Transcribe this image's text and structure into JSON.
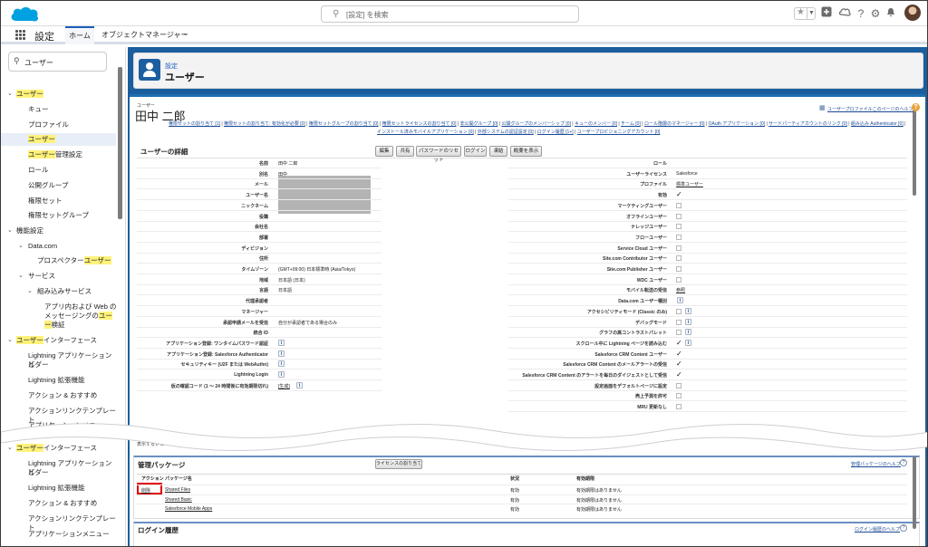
{
  "search": {
    "placeholder": "[設定] を検索"
  },
  "app": {
    "name": "設定"
  },
  "tabs": {
    "home": "ホーム",
    "object_manager": "オブジェクトマネージャー"
  },
  "sidebar": {
    "search_value": "ユーザー",
    "items_upper": [
      "ユーザー",
      "キュー",
      "プロファイル",
      "ユーザー",
      "ユーザー管理設定",
      "ロール",
      "公開グループ",
      "権限セット",
      "権限セットグループ",
      "機能設定",
      "Data.com",
      "プロスペクターユーザー",
      "サービス",
      "組み込みサービス",
      "アプリ内および Web の",
      "メッセージングのユーザー",
      "ー検証",
      "ユーザーインターフェース",
      "Lightning アプリケーションビ",
      "ルダー",
      "Lightning 拡張機能",
      "アクション & おすすめ",
      "アクションリンクテンプレート",
      "アプリケーションメニュー"
    ],
    "items_lower": [
      "ユーザーインターフェース",
      "Lightning アプリケーションビ",
      "ルダー",
      "Lightning 拡張機能",
      "アクション & おすすめ",
      "アクションリンクテンプレート",
      "アプリケーションメニュー"
    ]
  },
  "header": {
    "subtitle": "設定",
    "title": "ユーザー"
  },
  "user": {
    "caption": "ユーザー",
    "name": "田中 二郎",
    "help_link": "ユーザープロファイルこのページのヘルプ",
    "related_links_row1": [
      "権限セットの割り当て [1]",
      "権限セットの割り当て: 有効化が必要 [0]",
      "権限セットグループの割り当て [0]",
      "権限セットライセンスの割り当て [0]",
      "非公開グループ [0]",
      "公開グループのメンバーシップ [0]",
      "キューのメンバー [0]",
      "チーム [0]",
      "ロール階層のマネージャー [0]",
      "OAuth アプリケーション [0]",
      "サードパーティアカウントのリンク [0]",
      "組み込み Authenticator [0]"
    ],
    "related_links_row2": [
      "インストール済みモバイルアプリケーション [0]",
      "外部システムの認証設定 [0]",
      "ログイン履歴 [1+]",
      "ユーザープロビジョニングアカウント [0]"
    ]
  },
  "detail": {
    "title": "ユーザーの詳細",
    "buttons": [
      "編集",
      "共有",
      "パスワードのリセット",
      "ログイン",
      "凍結",
      "概要を表示"
    ],
    "left_labels": [
      "名前",
      "別名",
      "メール",
      "ユーザー名",
      "ニックネーム",
      "役職",
      "会社名",
      "部署",
      "ディビジョン",
      "住所",
      "タイムゾーン",
      "地域",
      "言語",
      "代理承認者",
      "マネージャー",
      "承認申請メールを受信",
      "統合 ID",
      "アプリケーション登録: ワンタイムパスワード認証",
      "アプリケーション登録: Salesforce Authenticator",
      "セキュリティキー (U2F または WebAuthn)",
      "Lightning Login",
      "仮の確認コード (1 〜 24 時間後に有効期限切れ)"
    ],
    "left_values": {
      "name": "田中 二郎",
      "alias": "田中",
      "timezone": "(GMT+09:00) 日本標準時 (Asia/Tokyo)",
      "locale": "日本語 (日本)",
      "language": "日本語",
      "approval_mail": "自分が承認者である場合のみ",
      "generate_link": "[生成]"
    },
    "right_labels": [
      "ロール",
      "ユーザーライセンス",
      "プロファイル",
      "有効",
      "マーケティングユーザー",
      "オフラインユーザー",
      "ナレッジユーザー",
      "フローユーザー",
      "Service Cloud ユーザー",
      "Site.com Contributor ユーザー",
      "Site.com Publisher ユーザー",
      "WDC ユーザー",
      "モバイル転送の受信",
      "Data.com ユーザー種別",
      "アクセシビリティモード (Classic のみ)",
      "デバッグモード",
      "グラフの高コントラストパレット",
      "スクロール中に Lightning ページを読み込む",
      "Salesforce CRM Content ユーザー",
      "Salesforce CRM Content のメールアラートの受信",
      "Salesforce CRM Content のアラートを毎日のダイジェストとして受信",
      "設定画面をデフォルトページに設定",
      "売上予測を許可",
      "MRU 更新なし"
    ],
    "right_values": {
      "license": "Salesforce",
      "profile": "標準ユーザー",
      "mobile_transfer": "参照"
    }
  },
  "packages": {
    "title": "管理パッケージ",
    "assign_button": "ライセンスの割り当て",
    "help": "管理パッケージのヘルプ",
    "columns": [
      "アクション",
      "パッケージ名",
      "状況",
      "有効期限"
    ],
    "rows": [
      {
        "action": "削除",
        "name": "Shared Files",
        "status": "有効",
        "expiry": "有効期限はありません"
      },
      {
        "action": "",
        "name": "Shared Basic",
        "status": "有効",
        "expiry": "有効期限はありません"
      },
      {
        "action": "",
        "name": "Salesforce Mobile Apps",
        "status": "有効",
        "expiry": "有効期限はありません"
      }
    ],
    "no_records_text": "表示するレコードはありません"
  },
  "login_history": {
    "title": "ログイン履歴",
    "help": "ログイン履歴のヘルプ"
  },
  "colors": {
    "brand": "#1b96ff",
    "header_band": "#1b5e9e",
    "highlight": "#fff27a",
    "delete_box": "#e00000"
  }
}
